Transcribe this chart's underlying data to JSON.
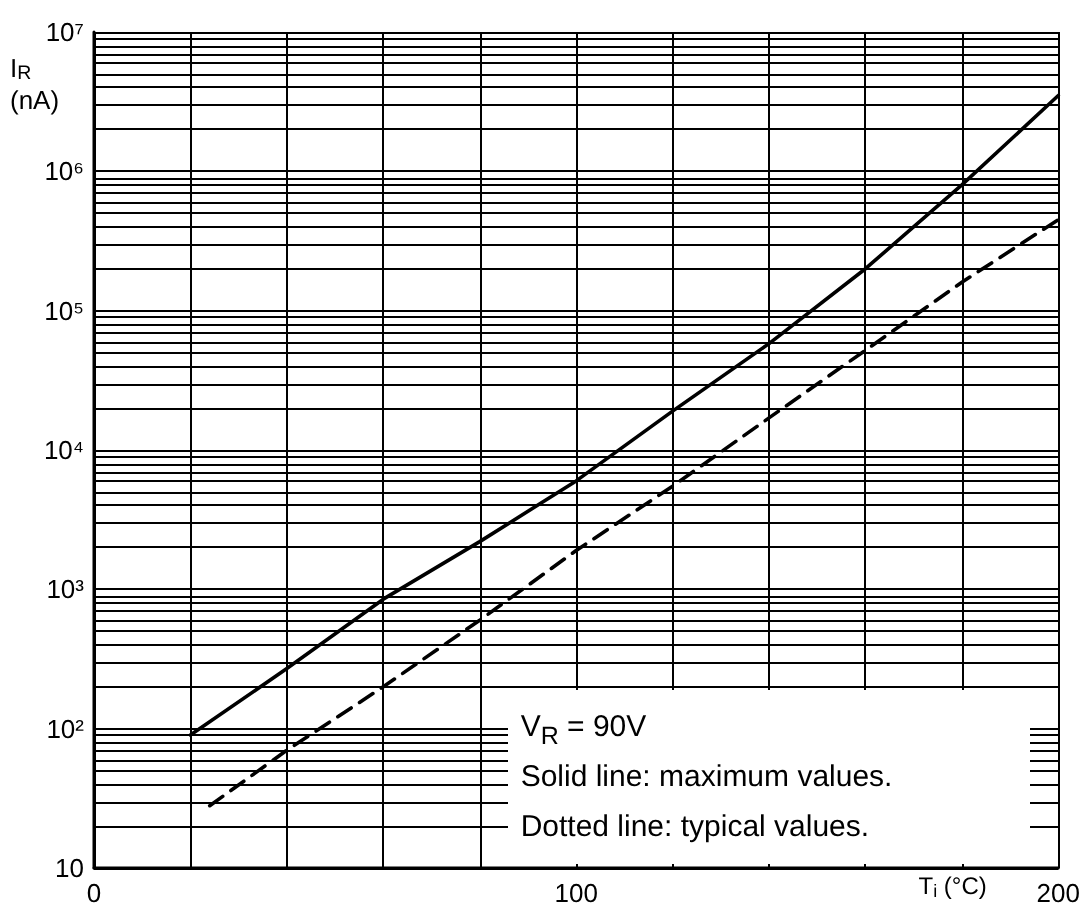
{
  "chart_data": {
    "type": "line",
    "xlabel": "T$_{i}$ (°C)",
    "ylabel": "I$_{R}$ (nA)",
    "log": "y",
    "grid": true,
    "marker": "none",
    "xlim": [
      0,
      200
    ],
    "ylim": [
      10,
      10000000
    ],
    "xticks": [
      0,
      {
        "value": 20,
        "label": null
      },
      {
        "value": 40,
        "label": null
      },
      {
        "value": 60,
        "label": null
      },
      {
        "value": 80,
        "label": null
      },
      100,
      {
        "value": 120,
        "label": null
      },
      {
        "value": 140,
        "label": null
      },
      {
        "value": 160,
        "label": null
      },
      {
        "value": 180,
        "label": null
      },
      200
    ],
    "yticks": [
      10,
      {
        "value": 20,
        "label": null
      },
      {
        "value": 30,
        "label": null
      },
      {
        "value": 40,
        "label": null
      },
      {
        "value": 50,
        "label": null
      },
      {
        "value": 60,
        "label": null
      },
      {
        "value": 70,
        "label": null
      },
      {
        "value": 80,
        "label": null
      },
      {
        "value": 90,
        "label": null
      },
      {
        "value": 100,
        "label": "10²"
      },
      {
        "value": 200,
        "label": null
      },
      {
        "value": 300,
        "label": null
      },
      {
        "value": 400,
        "label": null
      },
      {
        "value": 500,
        "label": null
      },
      {
        "value": 600,
        "label": null
      },
      {
        "value": 700,
        "label": null
      },
      {
        "value": 800,
        "label": null
      },
      {
        "value": 900,
        "label": null
      },
      {
        "value": 1000,
        "label": "10³"
      },
      {
        "value": 2000,
        "label": null
      },
      {
        "value": 3000,
        "label": null
      },
      {
        "value": 4000,
        "label": null
      },
      {
        "value": 5000,
        "label": null
      },
      {
        "value": 6000,
        "label": null
      },
      {
        "value": 7000,
        "label": null
      },
      {
        "value": 8000,
        "label": null
      },
      {
        "value": 9000,
        "label": null
      },
      {
        "value": 10000,
        "label": "10⁴"
      },
      {
        "value": 20000,
        "label": null
      },
      {
        "value": 30000,
        "label": null
      },
      {
        "value": 40000,
        "label": null
      },
      {
        "value": 50000,
        "label": null
      },
      {
        "value": 60000,
        "label": null
      },
      {
        "value": 70000,
        "label": null
      },
      {
        "value": 80000,
        "label": null
      },
      {
        "value": 90000,
        "label": null
      },
      {
        "value": 100000,
        "label": "10⁵"
      },
      {
        "value": 200000,
        "label": null
      },
      {
        "value": 300000,
        "label": null
      },
      {
        "value": 400000,
        "label": null
      },
      {
        "value": 500000,
        "label": null
      },
      {
        "value": 600000,
        "label": null
      },
      {
        "value": 700000,
        "label": null
      },
      {
        "value": 800000,
        "label": null
      },
      {
        "value": 900000,
        "label": null
      },
      {
        "value": 1000000,
        "label": "10⁶"
      },
      {
        "value": 2000000,
        "label": null
      },
      {
        "value": 3000000,
        "label": null
      },
      {
        "value": 4000000,
        "label": null
      },
      {
        "value": 5000000,
        "label": null
      },
      {
        "value": 6000000,
        "label": null
      },
      {
        "value": 7000000,
        "label": null
      },
      {
        "value": 8000000,
        "label": null
      },
      {
        "value": 9000000,
        "label": null
      },
      {
        "value": 10000000,
        "label": "10⁷"
      }
    ],
    "series": [
      {
        "color": "#000000",
        "line_style": "solid",
        "x": [
          20,
          40,
          60,
          80,
          100,
          120,
          140,
          160,
          180,
          200
        ],
        "values": [
          90,
          270,
          850,
          2200,
          6000,
          19000,
          58000,
          200000,
          800000,
          3500000
        ]
      },
      {
        "color": "#000000",
        "line_style": "dashed",
        "x": [
          24,
          40,
          60,
          80,
          100,
          120,
          140,
          160,
          180,
          200
        ],
        "values": [
          28,
          70,
          200,
          600,
          1900,
          5500,
          17000,
          52000,
          160000,
          450000
        ]
      }
    ],
    "annotations": [
      "V$_{R}$ = 90V",
      "Solid line: maximum values.",
      "Dotted line: typical values."
    ]
  }
}
